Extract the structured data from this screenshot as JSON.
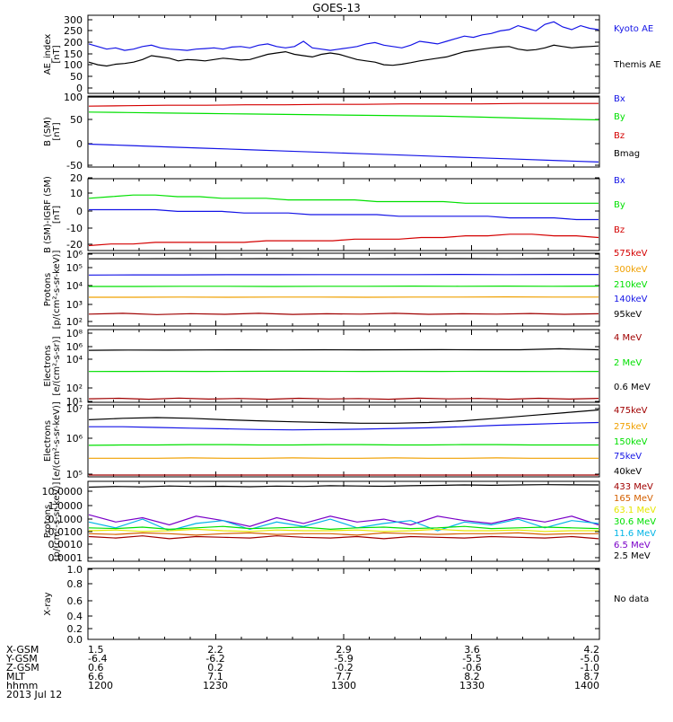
{
  "title": "GOES-13",
  "date_label": "2013 Jul 12",
  "colors": {
    "black": "#000000",
    "blue": "#1414e6",
    "green": "#00e000",
    "red": "#d40000",
    "darkred": "#a00000",
    "orange": "#f0a000",
    "cyan": "#00b4e6",
    "purple": "#7a00c8",
    "yellow": "#e6e600"
  },
  "chart_data": [
    {
      "type": "line",
      "id": "ae",
      "ylabel": [
        "AE_index",
        "[nT]"
      ],
      "yticks": [
        "300",
        "250",
        "200",
        "150",
        "100",
        "50",
        "0"
      ],
      "ylim": [
        0,
        300
      ],
      "legend": [
        {
          "name": "Kyoto AE",
          "color": "#1414e6"
        },
        {
          "name": "Themis AE",
          "color": "#000000"
        }
      ],
      "series": [
        {
          "name": "Kyoto AE",
          "color": "#1414e6",
          "values": [
            190,
            180,
            170,
            175,
            165,
            170,
            180,
            185,
            175,
            170,
            168,
            165,
            170,
            172,
            175,
            170,
            178,
            180,
            175,
            185,
            190,
            180,
            175,
            180,
            200,
            175,
            170,
            165,
            170,
            175,
            180,
            190,
            195,
            185,
            180,
            175,
            185,
            200,
            195,
            190,
            200,
            210,
            220,
            215,
            225,
            230,
            240,
            245,
            260,
            250,
            240,
            265,
            275,
            255,
            245,
            260,
            250,
            245
          ]
        },
        {
          "name": "Themis AE",
          "color": "#000000",
          "values": [
            120,
            110,
            105,
            112,
            115,
            120,
            130,
            145,
            140,
            135,
            125,
            130,
            128,
            125,
            130,
            135,
            132,
            128,
            130,
            140,
            150,
            155,
            160,
            150,
            145,
            140,
            150,
            155,
            150,
            140,
            130,
            125,
            120,
            110,
            108,
            112,
            118,
            125,
            130,
            135,
            140,
            150,
            160,
            165,
            170,
            175,
            178,
            180,
            170,
            165,
            168,
            175,
            185,
            180,
            175,
            178,
            180,
            182
          ]
        }
      ]
    },
    {
      "type": "line",
      "id": "bsm",
      "ylabel": [
        "B (SM)",
        "[nT]"
      ],
      "yticks": [
        "100",
        "50",
        "0",
        "-50"
      ],
      "ylim": [
        -55,
        100
      ],
      "legend": [
        {
          "name": "Bx",
          "color": "#1414e6"
        },
        {
          "name": "By",
          "color": "#00e000"
        },
        {
          "name": "Bz",
          "color": "#d40000"
        },
        {
          "name": "Bmag",
          "color": "#000000"
        }
      ],
      "series": [
        {
          "name": "Bmag",
          "color": "#000000",
          "values": [
            99,
            99,
            99,
            99,
            99,
            99,
            99,
            99,
            99,
            99,
            99,
            99,
            99,
            99
          ]
        },
        {
          "name": "Bz",
          "color": "#d40000",
          "values": [
            78,
            79,
            80,
            80,
            81,
            81,
            82,
            82,
            83,
            83,
            83,
            84,
            84,
            84
          ]
        },
        {
          "name": "By",
          "color": "#00e000",
          "values": [
            65,
            64,
            63,
            62,
            61,
            60,
            59,
            58,
            57,
            56,
            54,
            52,
            50,
            48
          ]
        },
        {
          "name": "Bx",
          "color": "#1414e6",
          "values": [
            -5,
            -8,
            -11,
            -14,
            -17,
            -20,
            -23,
            -26,
            -29,
            -32,
            -35,
            -38,
            -41,
            -44
          ]
        }
      ]
    },
    {
      "type": "line",
      "id": "bigrf",
      "ylabel": [
        "B (SM)-IGRF (SM)",
        "[nT]"
      ],
      "yticks": [
        "20",
        "10",
        "0",
        "-10",
        "-20"
      ],
      "ylim": [
        -22,
        22
      ],
      "legend": [
        {
          "name": "Bx",
          "color": "#1414e6"
        },
        {
          "name": "By",
          "color": "#00e000"
        },
        {
          "name": "Bz",
          "color": "#d40000"
        }
      ],
      "series": [
        {
          "name": "By",
          "color": "#00e000",
          "values": [
            10,
            11,
            12,
            12,
            11,
            11,
            10,
            10,
            10,
            9,
            9,
            9,
            9,
            8,
            8,
            8,
            8,
            7,
            7,
            7,
            7,
            7,
            7,
            7
          ]
        },
        {
          "name": "Bx",
          "color": "#1414e6",
          "values": [
            3,
            3,
            3,
            3,
            2,
            2,
            2,
            1,
            1,
            1,
            0,
            0,
            0,
            0,
            -1,
            -1,
            -1,
            -1,
            -1,
            -2,
            -2,
            -2,
            -3,
            -3
          ]
        },
        {
          "name": "Bz",
          "color": "#d40000",
          "values": [
            -19,
            -18,
            -18,
            -17,
            -17,
            -17,
            -17,
            -17,
            -16,
            -16,
            -16,
            -16,
            -15,
            -15,
            -15,
            -14,
            -14,
            -13,
            -13,
            -12,
            -12,
            -13,
            -13,
            -14
          ]
        }
      ]
    },
    {
      "type": "line",
      "id": "protons",
      "log": true,
      "ylabel": [
        "Protons",
        "[p/(cm²-s-sr-keV)]"
      ],
      "yticks": [
        "10⁶",
        "10⁵",
        "10⁴",
        "10³",
        "10²"
      ],
      "ylog": [
        1.7,
        6.3
      ],
      "legend": [
        {
          "name": "575keV",
          "color": "#d40000"
        },
        {
          "name": "300keV",
          "color": "#f0a000"
        },
        {
          "name": "210keV",
          "color": "#00e000"
        },
        {
          "name": "140keV",
          "color": "#1414e6"
        },
        {
          "name": "95keV",
          "color": "#000000"
        }
      ],
      "series": [
        {
          "name": "95keV",
          "color": "#000000",
          "values": [
            5.95,
            5.95,
            5.96,
            5.95,
            5.96,
            5.95,
            5.95,
            5.96,
            5.96,
            5.95,
            5.96,
            5.96
          ]
        },
        {
          "name": "140keV",
          "color": "#1414e6",
          "values": [
            4.92,
            4.93,
            4.93,
            4.94,
            4.94,
            4.95,
            4.95,
            4.95,
            4.96,
            4.95,
            4.96,
            4.96
          ]
        },
        {
          "name": "210keV",
          "color": "#00e000",
          "values": [
            4.2,
            4.2,
            4.21,
            4.21,
            4.2,
            4.21,
            4.21,
            4.22,
            4.21,
            4.22,
            4.21,
            4.22
          ]
        },
        {
          "name": "300keV",
          "color": "#f0a000",
          "values": [
            3.52,
            3.52,
            3.53,
            3.52,
            3.53,
            3.53,
            3.52,
            3.53,
            3.53,
            3.54,
            3.53,
            3.53
          ]
        },
        {
          "name": "575keV",
          "color": "#a00000",
          "values": [
            2.45,
            2.5,
            2.42,
            2.48,
            2.44,
            2.5,
            2.43,
            2.47,
            2.45,
            2.5,
            2.44,
            2.47,
            2.45,
            2.49,
            2.44,
            2.47
          ]
        }
      ]
    },
    {
      "type": "line",
      "id": "electrons1",
      "log": true,
      "ylabel": [
        "Electrons",
        "[e/(cm²-s-sr)]"
      ],
      "yticks": [
        "10⁸",
        "10⁶",
        "10⁴",
        "10²",
        "10¹"
      ],
      "ylog": [
        0.8,
        8.0
      ],
      "legend": [
        {
          "name": "4 MeV",
          "color": "#a00000"
        },
        {
          "name": "2 MeV",
          "color": "#00e000"
        },
        {
          "name": "0.6 MeV",
          "color": "#000000"
        }
      ],
      "series": [
        {
          "name": "0.6 MeV",
          "color": "#000000",
          "values": [
            5.95,
            5.97,
            5.96,
            5.98,
            5.99,
            5.98,
            6.0,
            5.99,
            6.0,
            6.01,
            6.0,
            6.0,
            6.1,
            6.0
          ]
        },
        {
          "name": "2 MeV",
          "color": "#00e000",
          "values": [
            3.85,
            3.86,
            3.87,
            3.86,
            3.87,
            3.88,
            3.87,
            3.86,
            3.87,
            3.86,
            3.87,
            3.86,
            3.85,
            3.86
          ]
        },
        {
          "name": "4 MeV",
          "color": "#a00000",
          "values": [
            1.15,
            1.2,
            1.1,
            1.22,
            1.12,
            1.18,
            1.1,
            1.2,
            1.13,
            1.17,
            1.1,
            1.21,
            1.14,
            1.18,
            1.1,
            1.2,
            1.12,
            1.19
          ]
        }
      ]
    },
    {
      "type": "line",
      "id": "electrons2",
      "log": true,
      "ylabel": [
        "Electrons",
        "[e/(cm²-s-sr-keV)]"
      ],
      "yticks": [
        "10⁷",
        "10⁶",
        "10⁵"
      ],
      "ylog": [
        4.95,
        7.0
      ],
      "legend": [
        {
          "name": "475keV",
          "color": "#a00000"
        },
        {
          "name": "275keV",
          "color": "#f0a000"
        },
        {
          "name": "150keV",
          "color": "#00e000"
        },
        {
          "name": "75keV",
          "color": "#1414e6"
        },
        {
          "name": "40keV",
          "color": "#000000"
        }
      ],
      "series": [
        {
          "name": "40keV",
          "color": "#000000",
          "values": [
            6.58,
            6.62,
            6.64,
            6.62,
            6.58,
            6.55,
            6.52,
            6.5,
            6.48,
            6.48,
            6.5,
            6.55,
            6.62,
            6.7,
            6.78,
            6.86
          ]
        },
        {
          "name": "75keV",
          "color": "#1414e6",
          "values": [
            6.38,
            6.38,
            6.36,
            6.34,
            6.32,
            6.3,
            6.29,
            6.3,
            6.31,
            6.33,
            6.35,
            6.38,
            6.42,
            6.45,
            6.48,
            6.5
          ]
        },
        {
          "name": "150keV",
          "color": "#00e000",
          "values": [
            5.85,
            5.86,
            5.86,
            5.87,
            5.87,
            5.86,
            5.86,
            5.87,
            5.87,
            5.86,
            5.86,
            5.87,
            5.87,
            5.86,
            5.86,
            5.86
          ]
        },
        {
          "name": "275keV",
          "color": "#f0a000",
          "values": [
            5.48,
            5.48,
            5.48,
            5.49,
            5.48,
            5.48,
            5.49,
            5.48,
            5.48,
            5.49,
            5.48,
            5.48,
            5.49,
            5.48,
            5.48,
            5.48
          ]
        },
        {
          "name": "475keV",
          "color": "#a00000",
          "values": [
            5.0,
            5.0,
            5.0,
            5.0,
            5.0,
            5.0,
            5.0,
            5.0,
            5.0,
            5.0,
            5.0,
            5.0,
            5.0,
            5.0,
            5.0,
            5.0
          ]
        }
      ]
    },
    {
      "type": "line",
      "id": "protons2",
      "log": true,
      "ylabel": [
        "Protons",
        "[p/(cm²-s-sr-keV)]"
      ],
      "yticks": [
        "10.0000",
        "1.0000",
        "0.1000",
        "0.0100",
        "0.0010",
        "0.0001"
      ],
      "ylog": [
        -4.3,
        1.2
      ],
      "legend": [
        {
          "name": "433 MeV",
          "color": "#a00000"
        },
        {
          "name": "165 MeV",
          "color": "#d46000"
        },
        {
          "name": "63.1 MeV",
          "color": "#e6e600"
        },
        {
          "name": "30.6 MeV",
          "color": "#00e000"
        },
        {
          "name": "11.6 MeV",
          "color": "#00b4e6"
        },
        {
          "name": "6.5 MeV",
          "color": "#7a00c8"
        },
        {
          "name": "2.5 MeV",
          "color": "#000000"
        }
      ],
      "series": [
        {
          "name": "2.5 MeV",
          "color": "#000000",
          "values": [
            0.8,
            0.85,
            0.82,
            0.88,
            0.84,
            0.86,
            0.83,
            0.87,
            0.85,
            0.9,
            0.88,
            0.86,
            0.9,
            0.92,
            0.95,
            0.93,
            0.95,
            0.97,
            0.96,
            0.95
          ]
        },
        {
          "name": "6.5 MeV",
          "color": "#7a00c8",
          "values": [
            -1.1,
            -1.6,
            -1.3,
            -1.8,
            -1.2,
            -1.5,
            -1.9,
            -1.3,
            -1.7,
            -1.2,
            -1.6,
            -1.4,
            -1.8,
            -1.2,
            -1.5,
            -1.7,
            -1.3,
            -1.6,
            -1.2,
            -1.8
          ]
        },
        {
          "name": "11.6 MeV",
          "color": "#00b4e6",
          "values": [
            -1.6,
            -2.0,
            -1.4,
            -2.2,
            -1.7,
            -1.5,
            -2.1,
            -1.6,
            -1.9,
            -1.4,
            -2.0,
            -1.7,
            -1.5,
            -2.2,
            -1.6,
            -1.8,
            -1.4,
            -2.0,
            -1.5,
            -1.7
          ]
        },
        {
          "name": "30.6 MeV",
          "color": "#00e000",
          "values": [
            -2.0,
            -2.05,
            -1.95,
            -2.1,
            -2.0,
            -1.9,
            -2.05,
            -2.0,
            -1.95,
            -2.1,
            -2.0,
            -1.95,
            -2.05,
            -2.0,
            -1.9,
            -2.05,
            -2.0,
            -1.95,
            -2.0,
            -2.05
          ]
        },
        {
          "name": "63.1 MeV",
          "color": "#e6e600",
          "values": [
            -2.2,
            -2.15,
            -2.25,
            -2.2,
            -2.1,
            -2.2,
            -2.25,
            -2.15,
            -2.2,
            -2.2,
            -2.15,
            -2.25,
            -2.2,
            -2.1,
            -2.2,
            -2.2,
            -2.15,
            -2.25,
            -2.2,
            -2.2
          ]
        },
        {
          "name": "165 MeV",
          "color": "#d46000",
          "values": [
            -2.4,
            -2.45,
            -2.35,
            -2.4,
            -2.5,
            -2.4,
            -2.35,
            -2.45,
            -2.4,
            -2.4,
            -2.5,
            -2.35,
            -2.4,
            -2.45,
            -2.4,
            -2.4,
            -2.35,
            -2.45,
            -2.4,
            -2.4
          ]
        },
        {
          "name": "433 MeV",
          "color": "#a00000",
          "values": [
            -2.6,
            -2.7,
            -2.55,
            -2.75,
            -2.6,
            -2.65,
            -2.7,
            -2.55,
            -2.65,
            -2.7,
            -2.6,
            -2.75,
            -2.6,
            -2.65,
            -2.7,
            -2.6,
            -2.65,
            -2.7,
            -2.6,
            -2.75
          ]
        }
      ]
    },
    {
      "type": "line",
      "id": "xray",
      "ylabel": [
        "X-ray",
        ""
      ],
      "yticks": [
        "1.0",
        "0.8",
        "0.6",
        "0.4",
        "0.2",
        "0.0"
      ],
      "ylim": [
        0,
        1
      ],
      "legend": [
        {
          "name": "No data",
          "color": "#000000"
        }
      ],
      "series": []
    }
  ],
  "ephemeris": {
    "labels": [
      "X-GSM",
      "Y-GSM",
      "Z-GSM",
      "MLT",
      "hhmm"
    ],
    "columns": [
      [
        "1.5",
        "-6.4",
        "0.6",
        "6.6",
        "1200"
      ],
      [
        "2.2",
        "-6.2",
        "0.2",
        "7.1",
        "1230"
      ],
      [
        "2.9",
        "-5.9",
        "-0.2",
        "7.7",
        "1300"
      ],
      [
        "3.6",
        "-5.5",
        "-0.6",
        "8.2",
        "1330"
      ],
      [
        "4.2",
        "-5.0",
        "-1.0",
        "8.7",
        "1400"
      ]
    ]
  }
}
